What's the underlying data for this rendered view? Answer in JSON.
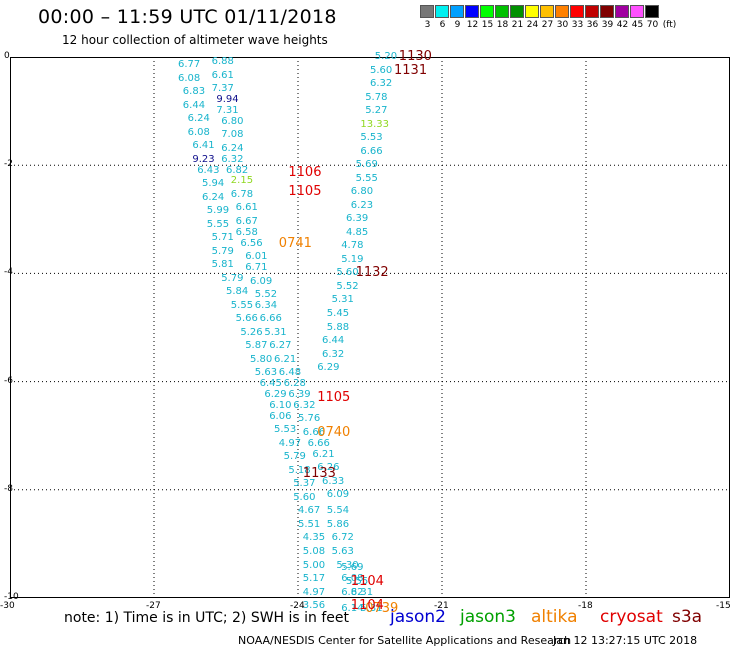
{
  "header": {
    "title": "00:00 – 11:59 UTC 01/11/2018",
    "subtitle": "12 hour collection of altimeter wave heights"
  },
  "color_scale": {
    "labels": [
      "3",
      "6",
      "9",
      "12",
      "15",
      "18",
      "21",
      "24",
      "27",
      "30",
      "33",
      "36",
      "39",
      "42",
      "45",
      "70"
    ],
    "unit": "(ft)",
    "colors": [
      "#777777",
      "#00f0f0",
      "#00a0ff",
      "#0000ff",
      "#00ff00",
      "#00c000",
      "#009000",
      "#ffff00",
      "#ffc000",
      "#ff8000",
      "#ff0000",
      "#c00000",
      "#800000",
      "#a000a0",
      "#ff50ff",
      "#000000"
    ]
  },
  "axes": {
    "y_labels": [
      "0",
      "-2",
      "-4",
      "-6",
      "-8",
      "-10"
    ],
    "x_labels": [
      "-30",
      "-27",
      "-24",
      "-21",
      "-18",
      "-15"
    ],
    "x_range": [
      -30,
      -15
    ],
    "y_range": [
      -10,
      0
    ]
  },
  "observations": [
    {
      "lon": -26.5,
      "lat": -0.15,
      "text": "6.77",
      "color": "#18b4cc"
    },
    {
      "lon": -25.8,
      "lat": -0.1,
      "text": "6.88",
      "color": "#18b4cc"
    },
    {
      "lon": -26.5,
      "lat": -0.4,
      "text": "6.08",
      "color": "#18b4cc"
    },
    {
      "lon": -25.8,
      "lat": -0.35,
      "text": "6.61",
      "color": "#18b4cc"
    },
    {
      "lon": -25.8,
      "lat": -0.6,
      "text": "7.37",
      "color": "#18b4cc"
    },
    {
      "lon": -26.4,
      "lat": -0.65,
      "text": "6.83",
      "color": "#18b4cc"
    },
    {
      "lon": -25.7,
      "lat": -0.8,
      "text": "9.94",
      "color": "#10108c"
    },
    {
      "lon": -26.4,
      "lat": -0.9,
      "text": "6.44",
      "color": "#18b4cc"
    },
    {
      "lon": -25.7,
      "lat": -1.0,
      "text": "7.31",
      "color": "#18b4cc"
    },
    {
      "lon": -26.3,
      "lat": -1.15,
      "text": "6.24",
      "color": "#18b4cc"
    },
    {
      "lon": -25.6,
      "lat": -1.2,
      "text": "6.80",
      "color": "#18b4cc"
    },
    {
      "lon": -26.3,
      "lat": -1.4,
      "text": "6.08",
      "color": "#18b4cc"
    },
    {
      "lon": -25.6,
      "lat": -1.45,
      "text": "7.08",
      "color": "#18b4cc"
    },
    {
      "lon": -26.2,
      "lat": -1.65,
      "text": "6.41",
      "color": "#18b4cc"
    },
    {
      "lon": -25.6,
      "lat": -1.7,
      "text": "6.24",
      "color": "#18b4cc"
    },
    {
      "lon": -26.2,
      "lat": -1.9,
      "text": "9.23",
      "color": "#10108c"
    },
    {
      "lon": -25.6,
      "lat": -1.9,
      "text": "6.32",
      "color": "#18b4cc"
    },
    {
      "lon": -26.1,
      "lat": -2.1,
      "text": "6.43",
      "color": "#18b4cc"
    },
    {
      "lon": -25.5,
      "lat": -2.1,
      "text": "6.82",
      "color": "#18b4cc"
    },
    {
      "lon": -26.0,
      "lat": -2.35,
      "text": "5.94",
      "color": "#18b4cc"
    },
    {
      "lon": -25.4,
      "lat": -2.3,
      "text": "2.15",
      "color": "#90d820"
    },
    {
      "lon": -26.0,
      "lat": -2.6,
      "text": "6.24",
      "color": "#18b4cc"
    },
    {
      "lon": -25.4,
      "lat": -2.55,
      "text": "6.78",
      "color": "#18b4cc"
    },
    {
      "lon": -25.9,
      "lat": -2.85,
      "text": "5.99",
      "color": "#18b4cc"
    },
    {
      "lon": -25.3,
      "lat": -2.8,
      "text": "6.61",
      "color": "#18b4cc"
    },
    {
      "lon": -25.9,
      "lat": -3.1,
      "text": "5.55",
      "color": "#18b4cc"
    },
    {
      "lon": -25.3,
      "lat": -3.05,
      "text": "6.67",
      "color": "#18b4cc"
    },
    {
      "lon": -25.8,
      "lat": -3.35,
      "text": "5.71",
      "color": "#18b4cc"
    },
    {
      "lon": -25.3,
      "lat": -3.25,
      "text": "6.58",
      "color": "#18b4cc"
    },
    {
      "lon": -25.2,
      "lat": -3.45,
      "text": "6.56",
      "color": "#18b4cc"
    },
    {
      "lon": -25.8,
      "lat": -3.6,
      "text": "5.79",
      "color": "#18b4cc"
    },
    {
      "lon": -25.1,
      "lat": -3.7,
      "text": "6.01",
      "color": "#18b4cc"
    },
    {
      "lon": -25.8,
      "lat": -3.85,
      "text": "5.81",
      "color": "#18b4cc"
    },
    {
      "lon": -25.1,
      "lat": -3.9,
      "text": "6.71",
      "color": "#18b4cc"
    },
    {
      "lon": -25.6,
      "lat": -4.1,
      "text": "5.79",
      "color": "#18b4cc"
    },
    {
      "lon": -25.0,
      "lat": -4.15,
      "text": "6.09",
      "color": "#18b4cc"
    },
    {
      "lon": -25.5,
      "lat": -4.35,
      "text": "5.84",
      "color": "#18b4cc"
    },
    {
      "lon": -24.9,
      "lat": -4.4,
      "text": "5.52",
      "color": "#18b4cc"
    },
    {
      "lon": -25.4,
      "lat": -4.6,
      "text": "5.55",
      "color": "#18b4cc"
    },
    {
      "lon": -24.9,
      "lat": -4.6,
      "text": "6.34",
      "color": "#18b4cc"
    },
    {
      "lon": -25.3,
      "lat": -4.85,
      "text": "5.66",
      "color": "#18b4cc"
    },
    {
      "lon": -24.8,
      "lat": -4.85,
      "text": "6.66",
      "color": "#18b4cc"
    },
    {
      "lon": -25.2,
      "lat": -5.1,
      "text": "5.26",
      "color": "#18b4cc"
    },
    {
      "lon": -24.7,
      "lat": -5.1,
      "text": "5.31",
      "color": "#18b4cc"
    },
    {
      "lon": -25.1,
      "lat": -5.35,
      "text": "5.87",
      "color": "#18b4cc"
    },
    {
      "lon": -24.6,
      "lat": -5.35,
      "text": "6.27",
      "color": "#18b4cc"
    },
    {
      "lon": -25.0,
      "lat": -5.6,
      "text": "5.80",
      "color": "#18b4cc"
    },
    {
      "lon": -24.5,
      "lat": -5.6,
      "text": "6.21",
      "color": "#18b4cc"
    },
    {
      "lon": -24.9,
      "lat": -5.85,
      "text": "5.63",
      "color": "#18b4cc"
    },
    {
      "lon": -24.4,
      "lat": -5.85,
      "text": "6.48",
      "color": "#18b4cc"
    },
    {
      "lon": -24.8,
      "lat": -6.05,
      "text": "6.45",
      "color": "#18b4cc"
    },
    {
      "lon": -24.3,
      "lat": -6.05,
      "text": "6.28",
      "color": "#18b4cc"
    },
    {
      "lon": -24.7,
      "lat": -6.25,
      "text": "6.29",
      "color": "#18b4cc"
    },
    {
      "lon": -24.2,
      "lat": -6.25,
      "text": "6.39",
      "color": "#18b4cc"
    },
    {
      "lon": -24.6,
      "lat": -6.45,
      "text": "6.10",
      "color": "#18b4cc"
    },
    {
      "lon": -24.1,
      "lat": -6.45,
      "text": "6.32",
      "color": "#18b4cc"
    },
    {
      "lon": -24.6,
      "lat": -6.65,
      "text": "6.06",
      "color": "#18b4cc"
    },
    {
      "lon": -24.0,
      "lat": -6.7,
      "text": "5.76",
      "color": "#18b4cc"
    },
    {
      "lon": -24.5,
      "lat": -6.9,
      "text": "5.53",
      "color": "#18b4cc"
    },
    {
      "lon": -23.9,
      "lat": -6.95,
      "text": "6.66",
      "color": "#18b4cc"
    },
    {
      "lon": -24.4,
      "lat": -7.15,
      "text": "4.97",
      "color": "#18b4cc"
    },
    {
      "lon": -23.8,
      "lat": -7.15,
      "text": "6.66",
      "color": "#18b4cc"
    },
    {
      "lon": -24.3,
      "lat": -7.4,
      "text": "5.79",
      "color": "#18b4cc"
    },
    {
      "lon": -23.7,
      "lat": -7.35,
      "text": "6.21",
      "color": "#18b4cc"
    },
    {
      "lon": -24.2,
      "lat": -7.65,
      "text": "5.18",
      "color": "#18b4cc"
    },
    {
      "lon": -23.6,
      "lat": -7.6,
      "text": "6.26",
      "color": "#18b4cc"
    },
    {
      "lon": -24.1,
      "lat": -7.9,
      "text": "5.37",
      "color": "#18b4cc"
    },
    {
      "lon": -23.5,
      "lat": -7.85,
      "text": "6.33",
      "color": "#18b4cc"
    },
    {
      "lon": -24.1,
      "lat": -8.15,
      "text": "5.60",
      "color": "#18b4cc"
    },
    {
      "lon": -23.4,
      "lat": -8.1,
      "text": "6.09",
      "color": "#18b4cc"
    },
    {
      "lon": -24.0,
      "lat": -8.4,
      "text": "4.67",
      "color": "#18b4cc"
    },
    {
      "lon": -23.4,
      "lat": -8.4,
      "text": "5.54",
      "color": "#18b4cc"
    },
    {
      "lon": -24.0,
      "lat": -8.65,
      "text": "5.51",
      "color": "#18b4cc"
    },
    {
      "lon": -23.4,
      "lat": -8.65,
      "text": "5.86",
      "color": "#18b4cc"
    },
    {
      "lon": -23.9,
      "lat": -8.9,
      "text": "4.35",
      "color": "#18b4cc"
    },
    {
      "lon": -23.3,
      "lat": -8.9,
      "text": "6.72",
      "color": "#18b4cc"
    },
    {
      "lon": -23.9,
      "lat": -9.15,
      "text": "5.08",
      "color": "#18b4cc"
    },
    {
      "lon": -23.3,
      "lat": -9.15,
      "text": "5.63",
      "color": "#18b4cc"
    },
    {
      "lon": -23.2,
      "lat": -9.4,
      "text": "5.30",
      "color": "#18b4cc"
    },
    {
      "lon": -23.9,
      "lat": -9.4,
      "text": "5.00",
      "color": "#18b4cc"
    },
    {
      "lon": -23.1,
      "lat": -9.45,
      "text": "5.69",
      "color": "#18b4cc"
    },
    {
      "lon": -23.9,
      "lat": -9.65,
      "text": "5.17",
      "color": "#18b4cc"
    },
    {
      "lon": -23.1,
      "lat": -9.65,
      "text": "6.08",
      "color": "#18b4cc"
    },
    {
      "lon": -23.0,
      "lat": -9.7,
      "text": "5.55",
      "color": "#18b4cc"
    },
    {
      "lon": -23.9,
      "lat": -9.9,
      "text": "4.97",
      "color": "#18b4cc"
    },
    {
      "lon": -23.1,
      "lat": -9.9,
      "text": "6.82",
      "color": "#18b4cc"
    },
    {
      "lon": -22.9,
      "lat": -9.9,
      "text": "6.31",
      "color": "#18b4cc"
    },
    {
      "lon": -23.9,
      "lat": -10.15,
      "text": "3.56",
      "color": "#18b4cc"
    },
    {
      "lon": -23.1,
      "lat": -10.2,
      "text": "6.14",
      "color": "#18b4cc"
    },
    {
      "lon": -22.7,
      "lat": -10.2,
      "text": "5.31",
      "color": "#18b4cc"
    },
    {
      "lon": -22.4,
      "lat": 0.0,
      "text": "5.20",
      "color": "#18b4cc"
    },
    {
      "lon": -22.5,
      "lat": -0.25,
      "text": "5.60",
      "color": "#18b4cc"
    },
    {
      "lon": -22.5,
      "lat": -0.5,
      "text": "6.32",
      "color": "#18b4cc"
    },
    {
      "lon": -22.6,
      "lat": -0.75,
      "text": "5.78",
      "color": "#18b4cc"
    },
    {
      "lon": -22.6,
      "lat": -1.0,
      "text": "5.27",
      "color": "#18b4cc"
    },
    {
      "lon": -22.7,
      "lat": -1.25,
      "text": "13.33",
      "color": "#90d820"
    },
    {
      "lon": -22.7,
      "lat": -1.5,
      "text": "5.53",
      "color": "#18b4cc"
    },
    {
      "lon": -22.7,
      "lat": -1.75,
      "text": "6.66",
      "color": "#18b4cc"
    },
    {
      "lon": -22.8,
      "lat": -2.0,
      "text": "5.69",
      "color": "#18b4cc"
    },
    {
      "lon": -22.8,
      "lat": -2.25,
      "text": "5.55",
      "color": "#18b4cc"
    },
    {
      "lon": -22.9,
      "lat": -2.5,
      "text": "6.80",
      "color": "#18b4cc"
    },
    {
      "lon": -22.9,
      "lat": -2.75,
      "text": "6.23",
      "color": "#18b4cc"
    },
    {
      "lon": -23.0,
      "lat": -3.0,
      "text": "6.39",
      "color": "#18b4cc"
    },
    {
      "lon": -23.0,
      "lat": -3.25,
      "text": "4.85",
      "color": "#18b4cc"
    },
    {
      "lon": -23.1,
      "lat": -3.5,
      "text": "4.78",
      "color": "#18b4cc"
    },
    {
      "lon": -23.1,
      "lat": -3.75,
      "text": "5.19",
      "color": "#18b4cc"
    },
    {
      "lon": -23.2,
      "lat": -4.0,
      "text": "5.60",
      "color": "#18b4cc"
    },
    {
      "lon": -23.2,
      "lat": -4.25,
      "text": "5.52",
      "color": "#18b4cc"
    },
    {
      "lon": -23.3,
      "lat": -4.5,
      "text": "5.31",
      "color": "#18b4cc"
    },
    {
      "lon": -23.4,
      "lat": -4.75,
      "text": "5.45",
      "color": "#18b4cc"
    },
    {
      "lon": -23.4,
      "lat": -5.0,
      "text": "5.88",
      "color": "#18b4cc"
    },
    {
      "lon": -23.5,
      "lat": -5.25,
      "text": "6.44",
      "color": "#18b4cc"
    },
    {
      "lon": -23.5,
      "lat": -5.5,
      "text": "6.32",
      "color": "#18b4cc"
    },
    {
      "lon": -23.6,
      "lat": -5.75,
      "text": "6.29",
      "color": "#18b4cc"
    }
  ],
  "passes": [
    {
      "lon": -21.9,
      "lat": 0.0,
      "text": "1130",
      "color": "#800000"
    },
    {
      "lon": -22.0,
      "lat": -0.25,
      "text": "1131",
      "color": "#800000"
    },
    {
      "lon": -24.2,
      "lat": -2.15,
      "text": "1106",
      "color": "#e00000"
    },
    {
      "lon": -24.2,
      "lat": -2.5,
      "text": "1105",
      "color": "#e00000"
    },
    {
      "lon": -24.4,
      "lat": -3.45,
      "text": "0741",
      "color": "#f08000"
    },
    {
      "lon": -22.8,
      "lat": -4.0,
      "text": "1132",
      "color": "#800000"
    },
    {
      "lon": -23.6,
      "lat": -6.3,
      "text": "1105",
      "color": "#e00000"
    },
    {
      "lon": -23.6,
      "lat": -6.95,
      "text": "0740",
      "color": "#f08000"
    },
    {
      "lon": -23.9,
      "lat": -7.7,
      "text": "1133",
      "color": "#800000"
    },
    {
      "lon": -22.9,
      "lat": -9.7,
      "text": "1104",
      "color": "#e00000"
    },
    {
      "lon": -22.6,
      "lat": -10.2,
      "text": "0739",
      "color": "#f08000"
    },
    {
      "lon": -22.9,
      "lat": -10.15,
      "text": "1104",
      "color": "#e00000"
    }
  ],
  "footer": {
    "note": "note: 1) Time is in UTC; 2) SWH is in feet",
    "legend": [
      {
        "name": "jason2",
        "color": "#0000d0"
      },
      {
        "name": "jason3",
        "color": "#00a000"
      },
      {
        "name": "altika",
        "color": "#f08000"
      },
      {
        "name": "cryosat",
        "color": "#e00000"
      },
      {
        "name": "s3a",
        "color": "#800000"
      }
    ],
    "credit": "NOAA/NESDIS Center for Satellite Applications and Research",
    "issued": "Jan 12 13:27:15 UTC 2018"
  }
}
